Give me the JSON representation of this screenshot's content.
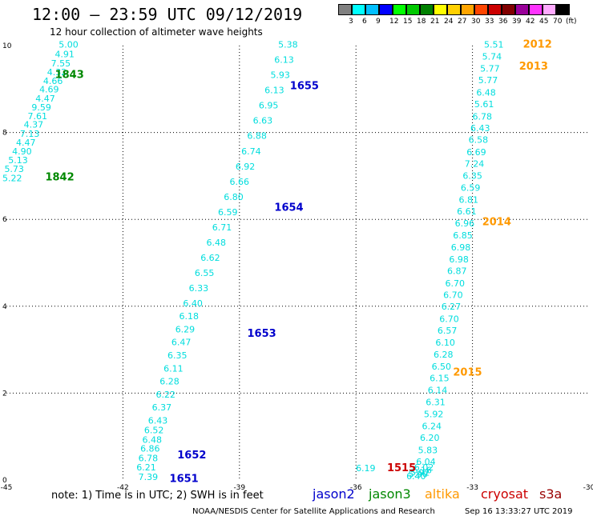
{
  "title": "12:00 – 23:59 UTC 09/12/2019",
  "subtitle": "12 hour collection of altimeter wave heights",
  "colorbar": {
    "unit": "(ft)",
    "labels": [
      "3",
      "6",
      "9",
      "12",
      "15",
      "18",
      "21",
      "24",
      "27",
      "30",
      "33",
      "36",
      "39",
      "42",
      "45",
      "70"
    ],
    "colors": [
      "#808080",
      "#00ffff",
      "#00bfff",
      "#0000ff",
      "#00ff00",
      "#00c800",
      "#008000",
      "#ffff00",
      "#ffd000",
      "#ffa500",
      "#ff4500",
      "#cc0000",
      "#800000",
      "#990099",
      "#ff33ff",
      "#ffaaff",
      "#000000"
    ]
  },
  "note": "note: 1) Time is in UTC; 2) SWH is in feet",
  "legend": [
    {
      "name": "jason2",
      "color": "#0000cc"
    },
    {
      "name": "jason3",
      "color": "#008800"
    },
    {
      "name": "altika",
      "color": "#ff9900"
    },
    {
      "name": "cryosat",
      "color": "#cc0000"
    },
    {
      "name": "s3a",
      "color": "#990000"
    }
  ],
  "footer": "NOAA/NESDIS Center for Satellite Applications and Research",
  "footer_timestamp": "Sep 16 13:33:27 UTC 2019",
  "chart_data": {
    "type": "scatter",
    "xlim": [
      -45,
      -30
    ],
    "ylim": [
      0,
      10
    ],
    "x_ticks": [
      -45,
      -42,
      -39,
      -36,
      -33,
      -30
    ],
    "x_tick_labels": [
      "-45",
      "-42",
      "-39",
      "-36",
      "-33",
      "-30"
    ],
    "y_ticks": [
      0,
      2,
      4,
      6,
      8,
      10
    ],
    "y_tick_labels": [
      "0",
      "2",
      "4",
      "6",
      "8",
      "10"
    ],
    "grid": true,
    "series": [
      {
        "satellite": "jason3",
        "color": "#00dddd",
        "pass_labels": [
          {
            "text": "1843",
            "x": -43.75,
            "y": 9.25,
            "color": "#008800"
          },
          {
            "text": "1842",
            "x": -44.0,
            "y": 6.9,
            "color": "#008800"
          }
        ],
        "points": [
          {
            "x": -43.4,
            "y": 9.95,
            "v": "5.00"
          },
          {
            "x": -43.5,
            "y": 9.73,
            "v": "4.91"
          },
          {
            "x": -43.6,
            "y": 9.52,
            "v": "7.55"
          },
          {
            "x": -43.7,
            "y": 9.32,
            "v": "4.32"
          },
          {
            "x": -43.8,
            "y": 9.12,
            "v": "4.66"
          },
          {
            "x": -43.9,
            "y": 8.92,
            "v": "4.69"
          },
          {
            "x": -44.0,
            "y": 8.71,
            "v": "4.47"
          },
          {
            "x": -44.1,
            "y": 8.51,
            "v": "9.59"
          },
          {
            "x": -44.2,
            "y": 8.31,
            "v": "7.61"
          },
          {
            "x": -44.3,
            "y": 8.11,
            "v": "4.37"
          },
          {
            "x": -44.4,
            "y": 7.9,
            "v": "7.13"
          },
          {
            "x": -44.5,
            "y": 7.7,
            "v": "4.47"
          },
          {
            "x": -44.6,
            "y": 7.5,
            "v": "4.90"
          },
          {
            "x": -44.7,
            "y": 7.29,
            "v": "5.13"
          },
          {
            "x": -44.8,
            "y": 7.09,
            "v": "5.73"
          },
          {
            "x": -44.85,
            "y": 6.88,
            "v": "5.22"
          }
        ]
      },
      {
        "satellite": "altika",
        "color": "#00dddd",
        "pass_labels": [
          {
            "text": "2012",
            "x": -31.7,
            "y": 9.95,
            "color": "#ff9900"
          },
          {
            "text": "2013",
            "x": -31.8,
            "y": 9.45,
            "color": "#ff9900"
          },
          {
            "text": "2014",
            "x": -32.75,
            "y": 5.87,
            "color": "#ff9900"
          },
          {
            "text": "2015",
            "x": -33.5,
            "y": 2.4,
            "color": "#ff9900"
          },
          {
            "text": "1515",
            "x": -35.2,
            "y": 0.2,
            "color": "#cc0000"
          }
        ],
        "points": [
          {
            "x": -32.45,
            "y": 9.95,
            "v": "5.51"
          },
          {
            "x": -32.5,
            "y": 9.68,
            "v": "5.74"
          },
          {
            "x": -32.55,
            "y": 9.4,
            "v": "5.77"
          },
          {
            "x": -32.6,
            "y": 9.13,
            "v": "5.77"
          },
          {
            "x": -32.65,
            "y": 8.85,
            "v": "6.48"
          },
          {
            "x": -32.7,
            "y": 8.58,
            "v": "5.61"
          },
          {
            "x": -32.75,
            "y": 8.3,
            "v": "6.78"
          },
          {
            "x": -32.8,
            "y": 8.03,
            "v": "6.43"
          },
          {
            "x": -32.85,
            "y": 7.76,
            "v": "6.58"
          },
          {
            "x": -32.9,
            "y": 7.48,
            "v": "6.69"
          },
          {
            "x": -32.95,
            "y": 7.21,
            "v": "7.24"
          },
          {
            "x": -33.0,
            "y": 6.93,
            "v": "6.35"
          },
          {
            "x": -33.05,
            "y": 6.66,
            "v": "6.59"
          },
          {
            "x": -33.1,
            "y": 6.38,
            "v": "6.81"
          },
          {
            "x": -33.15,
            "y": 6.11,
            "v": "6.61"
          },
          {
            "x": -33.2,
            "y": 5.84,
            "v": "6.96"
          },
          {
            "x": -33.25,
            "y": 5.56,
            "v": "6.85"
          },
          {
            "x": -33.3,
            "y": 5.29,
            "v": "6.98"
          },
          {
            "x": -33.35,
            "y": 5.01,
            "v": "6.98"
          },
          {
            "x": -33.4,
            "y": 4.74,
            "v": "6.87"
          },
          {
            "x": -33.45,
            "y": 4.46,
            "v": "6.70"
          },
          {
            "x": -33.5,
            "y": 4.19,
            "v": "6.70"
          },
          {
            "x": -33.55,
            "y": 3.92,
            "v": "6.27"
          },
          {
            "x": -33.6,
            "y": 3.64,
            "v": "6.70"
          },
          {
            "x": -33.65,
            "y": 3.37,
            "v": "6.57"
          },
          {
            "x": -33.7,
            "y": 3.09,
            "v": "6.10"
          },
          {
            "x": -33.75,
            "y": 2.82,
            "v": "6.28"
          },
          {
            "x": -33.8,
            "y": 2.54,
            "v": "6.50"
          },
          {
            "x": -33.85,
            "y": 2.27,
            "v": "6.15"
          },
          {
            "x": -33.9,
            "y": 2.0,
            "v": "6.14"
          },
          {
            "x": -33.95,
            "y": 1.72,
            "v": "6.31"
          },
          {
            "x": -34.0,
            "y": 1.45,
            "v": "5.92"
          },
          {
            "x": -34.05,
            "y": 1.17,
            "v": "6.24"
          },
          {
            "x": -34.1,
            "y": 0.9,
            "v": "6.20"
          },
          {
            "x": -34.15,
            "y": 0.62,
            "v": "5.83"
          },
          {
            "x": -34.2,
            "y": 0.35,
            "v": "6.04"
          },
          {
            "x": -34.25,
            "y": 0.22,
            "v": "6.02"
          },
          {
            "x": -34.3,
            "y": 0.16,
            "v": "6.16"
          },
          {
            "x": -34.35,
            "y": 0.1,
            "v": "5.92"
          },
          {
            "x": -34.4,
            "y": 0.06,
            "v": "5.90"
          },
          {
            "x": -34.45,
            "y": 0.02,
            "v": "6.40"
          },
          {
            "x": -35.75,
            "y": 0.2,
            "v": "6.19"
          }
        ]
      },
      {
        "satellite": "jason2",
        "color": "#00dddd",
        "pass_labels": [
          {
            "text": "1655",
            "x": -37.7,
            "y": 9.0,
            "color": "#0000cc"
          },
          {
            "text": "1654",
            "x": -38.1,
            "y": 6.2,
            "color": "#0000cc"
          },
          {
            "text": "1653",
            "x": -38.8,
            "y": 3.3,
            "color": "#0000cc"
          },
          {
            "text": "1652",
            "x": -40.6,
            "y": 0.5,
            "color": "#0000cc"
          },
          {
            "text": "1651",
            "x": -40.8,
            "y": -0.05,
            "color": "#0000cc"
          }
        ],
        "points": [
          {
            "x": -41.35,
            "y": 0.0,
            "v": "7.39"
          },
          {
            "x": -41.4,
            "y": 0.22,
            "v": "6.21"
          },
          {
            "x": -41.35,
            "y": 0.43,
            "v": "6.78"
          },
          {
            "x": -41.3,
            "y": 0.65,
            "v": "6.86"
          },
          {
            "x": -41.25,
            "y": 0.86,
            "v": "6.48"
          },
          {
            "x": -41.2,
            "y": 1.08,
            "v": "6.52"
          },
          {
            "x": -41.1,
            "y": 1.3,
            "v": "6.43"
          },
          {
            "x": -41.0,
            "y": 1.6,
            "v": "6.37"
          },
          {
            "x": -40.9,
            "y": 1.9,
            "v": "6.22"
          },
          {
            "x": -40.8,
            "y": 2.2,
            "v": "6.28"
          },
          {
            "x": -40.7,
            "y": 2.5,
            "v": "6.11"
          },
          {
            "x": -40.6,
            "y": 2.8,
            "v": "6.35"
          },
          {
            "x": -40.5,
            "y": 3.1,
            "v": "6.47"
          },
          {
            "x": -40.4,
            "y": 3.4,
            "v": "6.29"
          },
          {
            "x": -40.3,
            "y": 3.7,
            "v": "6.18"
          },
          {
            "x": -40.2,
            "y": 4.0,
            "v": "6.40"
          },
          {
            "x": -40.05,
            "y": 4.35,
            "v": "6.33"
          },
          {
            "x": -39.9,
            "y": 4.7,
            "v": "6.55"
          },
          {
            "x": -39.75,
            "y": 5.05,
            "v": "6.62"
          },
          {
            "x": -39.6,
            "y": 5.4,
            "v": "6.48"
          },
          {
            "x": -39.45,
            "y": 5.75,
            "v": "6.71"
          },
          {
            "x": -39.3,
            "y": 6.1,
            "v": "6.59"
          },
          {
            "x": -39.15,
            "y": 6.45,
            "v": "6.80"
          },
          {
            "x": -39.0,
            "y": 6.8,
            "v": "6.66"
          },
          {
            "x": -38.85,
            "y": 7.15,
            "v": "6.92"
          },
          {
            "x": -38.7,
            "y": 7.5,
            "v": "6.74"
          },
          {
            "x": -38.55,
            "y": 7.85,
            "v": "6.88"
          },
          {
            "x": -38.4,
            "y": 8.2,
            "v": "6.63"
          },
          {
            "x": -38.25,
            "y": 8.55,
            "v": "6.95"
          },
          {
            "x": -38.1,
            "y": 8.9,
            "v": "6.13"
          },
          {
            "x": -37.95,
            "y": 9.25,
            "v": "5.93"
          },
          {
            "x": -37.85,
            "y": 9.6,
            "v": "6.13"
          },
          {
            "x": -37.75,
            "y": 9.95,
            "v": "5.38"
          }
        ]
      }
    ]
  }
}
